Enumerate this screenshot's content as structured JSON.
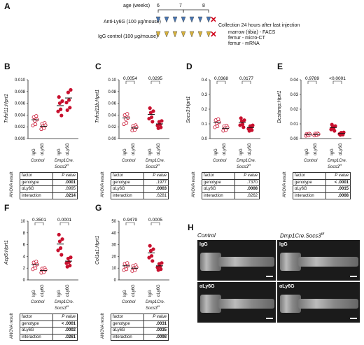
{
  "panelA": {
    "label": "A",
    "age_label": "age (weeks)",
    "weeks": [
      "6",
      "7",
      "8"
    ],
    "row1": "Anti-Ly6G (100 µg/mouse)",
    "row2": "IgG control (100 µg/mouse)",
    "note1": "Collection 24 hours after last injection",
    "note2": "marrow (tibia) - FACS",
    "note3": "femur - micro-CT",
    "note4": "femur - mRNA"
  },
  "common": {
    "igg": "IgG",
    "ly6g": "αLy6G",
    "control": "Control",
    "dmp": "Dmp1Cre.",
    "socs": "Socs3",
    "socs_sup": "f/f",
    "anova": "ANOVA result",
    "factor": "factor",
    "pval": "P value",
    "genotype": "genotype",
    "aly6g": "αLy6G",
    "interaction": "interaction"
  },
  "panels": [
    {
      "id": "B",
      "ylabel": "Tnfsf11:Hprt1",
      "yticks": [
        "0.000",
        "0.002",
        "0.004",
        "0.006",
        "0.008",
        "0.010"
      ],
      "sig": [],
      "pvals": [
        ".0001",
        ".8995",
        ".0214"
      ],
      "bold": [
        true,
        false,
        true
      ]
    },
    {
      "id": "C",
      "ylabel": "Tnfrsf11b:Hprt1",
      "yticks": [
        "0.00",
        "0.02",
        "0.04",
        "0.06",
        "0.08",
        "0.10"
      ],
      "sig": [
        "0.0054",
        "0.0295"
      ],
      "pvals": [
        ".1977",
        ".0003",
        ".6281"
      ],
      "bold": [
        false,
        true,
        false
      ]
    },
    {
      "id": "D",
      "ylabel": "Socs3:Hprt1",
      "yticks": [
        "0.0",
        "0.1",
        "0.2",
        "0.3",
        "0.4"
      ],
      "sig": [
        "0.0368",
        "0.0177"
      ],
      "pvals": [
        ".7370",
        ".0008",
        ".8262"
      ],
      "bold": [
        false,
        true,
        false
      ]
    },
    {
      "id": "E",
      "ylabel": "Dcstamp:Hprt1",
      "yticks": [
        "0.00",
        "0.01",
        "0.02",
        "0.03",
        "0.04"
      ],
      "sig": [
        "0.9789",
        "<0.0001"
      ],
      "pvals": [
        "< .0001",
        ".0015",
        ".0008"
      ],
      "bold": [
        true,
        true,
        true
      ]
    },
    {
      "id": "F",
      "ylabel": "Acp5:Hprt1",
      "yticks": [
        "0",
        "2",
        "4",
        "6",
        "8",
        "10"
      ],
      "sig": [
        "0.3501",
        "0.0001"
      ],
      "pvals": [
        "< .0001",
        ".0002",
        ".0261"
      ],
      "bold": [
        true,
        true,
        true
      ]
    },
    {
      "id": "G",
      "ylabel": "Col1a1:Hprt1",
      "yticks": [
        "0",
        "10",
        "20",
        "30",
        "40",
        "50"
      ],
      "sig": [
        "0.9479",
        "0.0005"
      ],
      "pvals": [
        ".0031",
        ".0035",
        ".0098"
      ],
      "bold": [
        true,
        true,
        true
      ]
    }
  ],
  "panelH": {
    "label": "H",
    "col1": "Control",
    "col2": "Dmp1Cre.Socs3",
    "col2_sup": "f/f",
    "igg": "IgG",
    "ly6g": "αLy6G"
  },
  "chart_data": [
    {
      "type": "scatter",
      "panel": "B",
      "categories": [
        "Control IgG",
        "Control αLy6G",
        "Dmp1Cre.Socs3f/f IgG",
        "Dmp1Cre.Socs3f/f αLy6G"
      ],
      "values": [
        0.0032,
        0.0021,
        0.0056,
        0.0069
      ],
      "ylim": [
        0,
        0.01
      ]
    },
    {
      "type": "scatter",
      "panel": "C",
      "categories": [
        "Control IgG",
        "Control αLy6G",
        "Dmp1Cre.Socs3f/f IgG",
        "Dmp1Cre.Socs3f/f αLy6G"
      ],
      "values": [
        0.035,
        0.018,
        0.041,
        0.025
      ],
      "ylim": [
        0,
        0.1
      ]
    },
    {
      "type": "scatter",
      "panel": "D",
      "categories": [
        "Control IgG",
        "Control αLy6G",
        "Dmp1Cre.Socs3f/f IgG",
        "Dmp1Cre.Socs3f/f αLy6G"
      ],
      "values": [
        0.11,
        0.07,
        0.11,
        0.075
      ],
      "ylim": [
        0,
        0.4
      ]
    },
    {
      "type": "scatter",
      "panel": "E",
      "categories": [
        "Control IgG",
        "Control αLy6G",
        "Dmp1Cre.Socs3f/f IgG",
        "Dmp1Cre.Socs3f/f αLy6G"
      ],
      "values": [
        0.0028,
        0.0028,
        0.0075,
        0.0035
      ],
      "ylim": [
        0,
        0.04
      ]
    },
    {
      "type": "scatter",
      "panel": "F",
      "categories": [
        "Control IgG",
        "Control αLy6G",
        "Dmp1Cre.Socs3f/f IgG",
        "Dmp1Cre.Socs3f/f αLy6G"
      ],
      "values": [
        2.6,
        1.6,
        6.1,
        3.2
      ],
      "ylim": [
        0,
        10
      ]
    },
    {
      "type": "scatter",
      "panel": "G",
      "categories": [
        "Control IgG",
        "Control αLy6G",
        "Dmp1Cre.Socs3f/f IgG",
        "Dmp1Cre.Socs3f/f αLy6G"
      ],
      "values": [
        12,
        10,
        23,
        12
      ],
      "ylim": [
        0,
        50
      ]
    }
  ]
}
